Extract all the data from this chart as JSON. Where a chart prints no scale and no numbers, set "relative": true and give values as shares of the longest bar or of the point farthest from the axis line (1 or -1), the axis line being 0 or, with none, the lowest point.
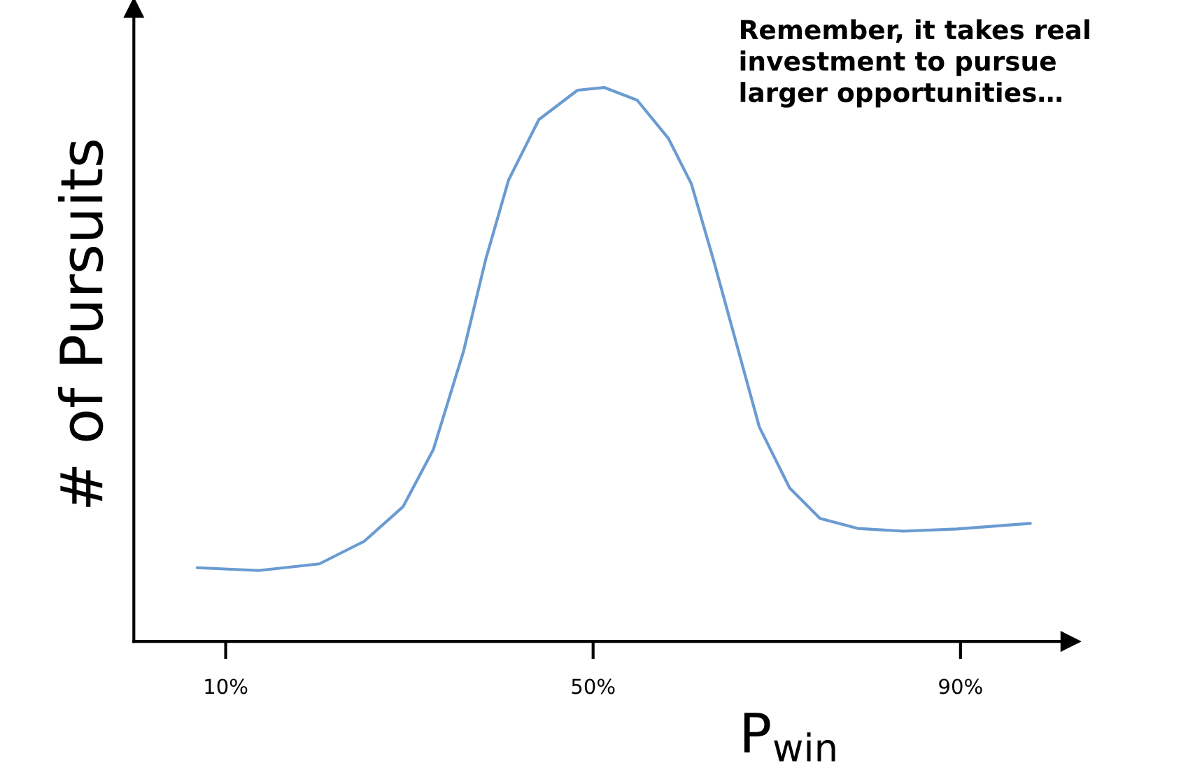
{
  "chart_data": {
    "type": "line",
    "relative": true,
    "xlabel": "P$_{win}$",
    "ylabel": "# of Pursuits",
    "annotations": [
      "Remember, it takes real\ninvestment to pursue\nlarger opportunities…"
    ],
    "xlim": [
      0,
      102
    ],
    "xticks": [
      {
        "value": 10,
        "label": "10%"
      },
      {
        "value": 50,
        "label": "50%"
      },
      {
        "value": 90,
        "label": "90%"
      }
    ],
    "tick_labels": "x",
    "grid": false,
    "legend": false,
    "marker": "none",
    "line_style": "solid",
    "series": [
      {
        "color": "#6a9bd1",
        "x": [
          6.9,
          13.6,
          20.2,
          25.1,
          29.3,
          32.6,
          35.9,
          38.3,
          40.8,
          44.1,
          48.3,
          51.2,
          54.8,
          58.2,
          60.7,
          63.1,
          65.6,
          68.1,
          71.4,
          74.7,
          78.8,
          83.8,
          89.6,
          97.6
        ],
        "values": [
          0.133,
          0.128,
          0.14,
          0.181,
          0.243,
          0.346,
          0.524,
          0.689,
          0.833,
          0.942,
          0.995,
          1.0,
          0.977,
          0.908,
          0.826,
          0.689,
          0.538,
          0.387,
          0.277,
          0.222,
          0.204,
          0.199,
          0.203,
          0.213
        ]
      }
    ]
  }
}
